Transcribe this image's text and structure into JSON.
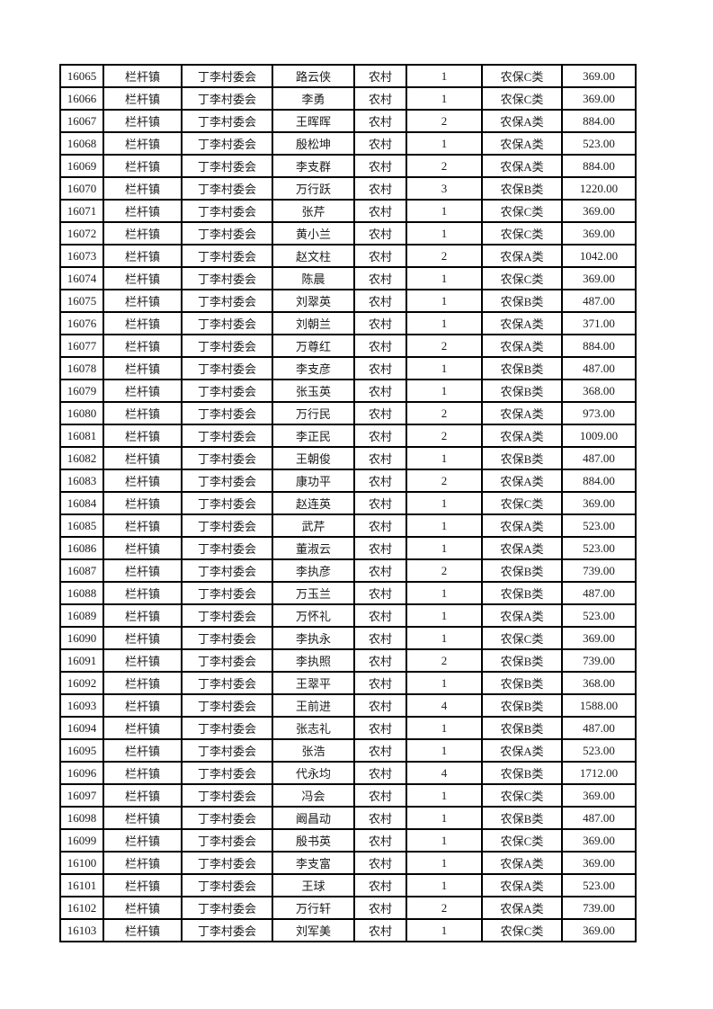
{
  "colors": {
    "page_bg": "#ffffff",
    "border": "#000000",
    "text": "#1b1b1b"
  },
  "table": {
    "column_keys": [
      "serial",
      "town",
      "village",
      "name",
      "category",
      "count",
      "type",
      "amount"
    ],
    "rows": [
      [
        "16065",
        "栏杆镇",
        "丁李村委会",
        "路云侠",
        "农村",
        "1",
        "农保C类",
        "369.00"
      ],
      [
        "16066",
        "栏杆镇",
        "丁李村委会",
        "李勇",
        "农村",
        "1",
        "农保C类",
        "369.00"
      ],
      [
        "16067",
        "栏杆镇",
        "丁李村委会",
        "王晖晖",
        "农村",
        "2",
        "农保A类",
        "884.00"
      ],
      [
        "16068",
        "栏杆镇",
        "丁李村委会",
        "殷松坤",
        "农村",
        "1",
        "农保A类",
        "523.00"
      ],
      [
        "16069",
        "栏杆镇",
        "丁李村委会",
        "李支群",
        "农村",
        "2",
        "农保A类",
        "884.00"
      ],
      [
        "16070",
        "栏杆镇",
        "丁李村委会",
        "万行跃",
        "农村",
        "3",
        "农保B类",
        "1220.00"
      ],
      [
        "16071",
        "栏杆镇",
        "丁李村委会",
        "张芹",
        "农村",
        "1",
        "农保C类",
        "369.00"
      ],
      [
        "16072",
        "栏杆镇",
        "丁李村委会",
        "黄小兰",
        "农村",
        "1",
        "农保C类",
        "369.00"
      ],
      [
        "16073",
        "栏杆镇",
        "丁李村委会",
        "赵文柱",
        "农村",
        "2",
        "农保A类",
        "1042.00"
      ],
      [
        "16074",
        "栏杆镇",
        "丁李村委会",
        "陈晨",
        "农村",
        "1",
        "农保C类",
        "369.00"
      ],
      [
        "16075",
        "栏杆镇",
        "丁李村委会",
        "刘翠英",
        "农村",
        "1",
        "农保B类",
        "487.00"
      ],
      [
        "16076",
        "栏杆镇",
        "丁李村委会",
        "刘朝兰",
        "农村",
        "1",
        "农保A类",
        "371.00"
      ],
      [
        "16077",
        "栏杆镇",
        "丁李村委会",
        "万尊红",
        "农村",
        "2",
        "农保A类",
        "884.00"
      ],
      [
        "16078",
        "栏杆镇",
        "丁李村委会",
        "李支彦",
        "农村",
        "1",
        "农保B类",
        "487.00"
      ],
      [
        "16079",
        "栏杆镇",
        "丁李村委会",
        "张玉英",
        "农村",
        "1",
        "农保B类",
        "368.00"
      ],
      [
        "16080",
        "栏杆镇",
        "丁李村委会",
        "万行民",
        "农村",
        "2",
        "农保A类",
        "973.00"
      ],
      [
        "16081",
        "栏杆镇",
        "丁李村委会",
        "李正民",
        "农村",
        "2",
        "农保A类",
        "1009.00"
      ],
      [
        "16082",
        "栏杆镇",
        "丁李村委会",
        "王朝俊",
        "农村",
        "1",
        "农保B类",
        "487.00"
      ],
      [
        "16083",
        "栏杆镇",
        "丁李村委会",
        "康功平",
        "农村",
        "2",
        "农保A类",
        "884.00"
      ],
      [
        "16084",
        "栏杆镇",
        "丁李村委会",
        "赵连英",
        "农村",
        "1",
        "农保C类",
        "369.00"
      ],
      [
        "16085",
        "栏杆镇",
        "丁李村委会",
        "武芹",
        "农村",
        "1",
        "农保A类",
        "523.00"
      ],
      [
        "16086",
        "栏杆镇",
        "丁李村委会",
        "董淑云",
        "农村",
        "1",
        "农保A类",
        "523.00"
      ],
      [
        "16087",
        "栏杆镇",
        "丁李村委会",
        "李执彦",
        "农村",
        "2",
        "农保B类",
        "739.00"
      ],
      [
        "16088",
        "栏杆镇",
        "丁李村委会",
        "万玉兰",
        "农村",
        "1",
        "农保B类",
        "487.00"
      ],
      [
        "16089",
        "栏杆镇",
        "丁李村委会",
        "万怀礼",
        "农村",
        "1",
        "农保A类",
        "523.00"
      ],
      [
        "16090",
        "栏杆镇",
        "丁李村委会",
        "李执永",
        "农村",
        "1",
        "农保C类",
        "369.00"
      ],
      [
        "16091",
        "栏杆镇",
        "丁李村委会",
        "李执照",
        "农村",
        "2",
        "农保B类",
        "739.00"
      ],
      [
        "16092",
        "栏杆镇",
        "丁李村委会",
        "王翠平",
        "农村",
        "1",
        "农保B类",
        "368.00"
      ],
      [
        "16093",
        "栏杆镇",
        "丁李村委会",
        "王前进",
        "农村",
        "4",
        "农保B类",
        "1588.00"
      ],
      [
        "16094",
        "栏杆镇",
        "丁李村委会",
        "张志礼",
        "农村",
        "1",
        "农保B类",
        "487.00"
      ],
      [
        "16095",
        "栏杆镇",
        "丁李村委会",
        "张浩",
        "农村",
        "1",
        "农保A类",
        "523.00"
      ],
      [
        "16096",
        "栏杆镇",
        "丁李村委会",
        "代永均",
        "农村",
        "4",
        "农保B类",
        "1712.00"
      ],
      [
        "16097",
        "栏杆镇",
        "丁李村委会",
        "冯会",
        "农村",
        "1",
        "农保C类",
        "369.00"
      ],
      [
        "16098",
        "栏杆镇",
        "丁李村委会",
        "阚昌动",
        "农村",
        "1",
        "农保B类",
        "487.00"
      ],
      [
        "16099",
        "栏杆镇",
        "丁李村委会",
        "殷书英",
        "农村",
        "1",
        "农保C类",
        "369.00"
      ],
      [
        "16100",
        "栏杆镇",
        "丁李村委会",
        "李支富",
        "农村",
        "1",
        "农保A类",
        "369.00"
      ],
      [
        "16101",
        "栏杆镇",
        "丁李村委会",
        "王球",
        "农村",
        "1",
        "农保A类",
        "523.00"
      ],
      [
        "16102",
        "栏杆镇",
        "丁李村委会",
        "万行轩",
        "农村",
        "2",
        "农保A类",
        "739.00"
      ],
      [
        "16103",
        "栏杆镇",
        "丁李村委会",
        "刘军美",
        "农村",
        "1",
        "农保C类",
        "369.00"
      ]
    ]
  }
}
